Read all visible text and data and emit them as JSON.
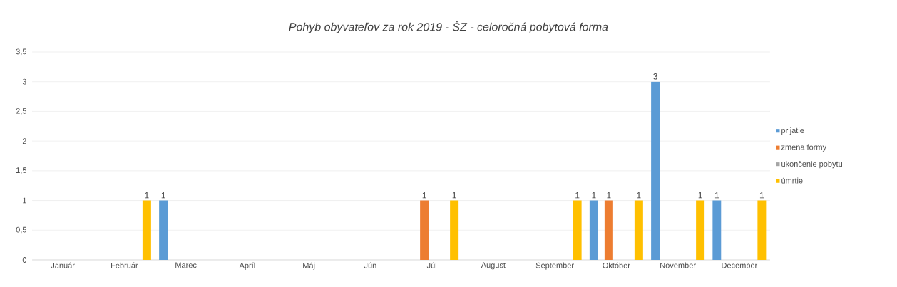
{
  "chart_data": {
    "type": "bar",
    "title": "Pohyb obyvateľov za rok 2019 - ŠZ - celoročná pobytová forma",
    "categories": [
      "Január",
      "Február",
      "Marec",
      "Apríl",
      "Máj",
      "Jún",
      "Júl",
      "August",
      "September",
      "Október",
      "November",
      "December"
    ],
    "series": [
      {
        "name": "prijatie",
        "color": "#5b9bd5",
        "values": [
          0,
          0,
          1,
          0,
          0,
          0,
          0,
          0,
          0,
          1,
          3,
          1
        ],
        "value_labels": [
          null,
          null,
          "1",
          null,
          null,
          null,
          null,
          null,
          null,
          "1",
          "3",
          "1"
        ]
      },
      {
        "name": "zmena formy",
        "color": "#ed7d31",
        "values": [
          0,
          0,
          0,
          0,
          0,
          0,
          1,
          0,
          0,
          1,
          0,
          0
        ],
        "value_labels": [
          null,
          null,
          null,
          null,
          null,
          null,
          "1",
          null,
          null,
          "1",
          null,
          null
        ]
      },
      {
        "name": "ukončenie pobytu",
        "color": "#a5a5a5",
        "values": [
          0,
          0,
          0,
          0,
          0,
          0,
          0,
          0,
          0,
          0,
          0,
          0
        ],
        "value_labels": [
          null,
          null,
          null,
          null,
          null,
          null,
          null,
          null,
          null,
          null,
          null,
          null
        ]
      },
      {
        "name": "úmrtie",
        "color": "#ffc000",
        "values": [
          0,
          1,
          0,
          0,
          0,
          0,
          1,
          0,
          1,
          1,
          1,
          1
        ],
        "value_labels": [
          null,
          "1",
          null,
          null,
          null,
          null,
          "1",
          null,
          "1",
          "1",
          "1",
          "1"
        ]
      }
    ],
    "ylim": [
      0,
      3.5
    ],
    "yticks": [
      0,
      {
        "value": 0.5,
        "label": "0,5"
      },
      1,
      {
        "value": 1.5,
        "label": "1,5"
      },
      2,
      {
        "value": 2.5,
        "label": "2,5"
      },
      3,
      {
        "value": 3.5,
        "label": "3,5"
      }
    ],
    "grid": "y",
    "legend": "right"
  }
}
